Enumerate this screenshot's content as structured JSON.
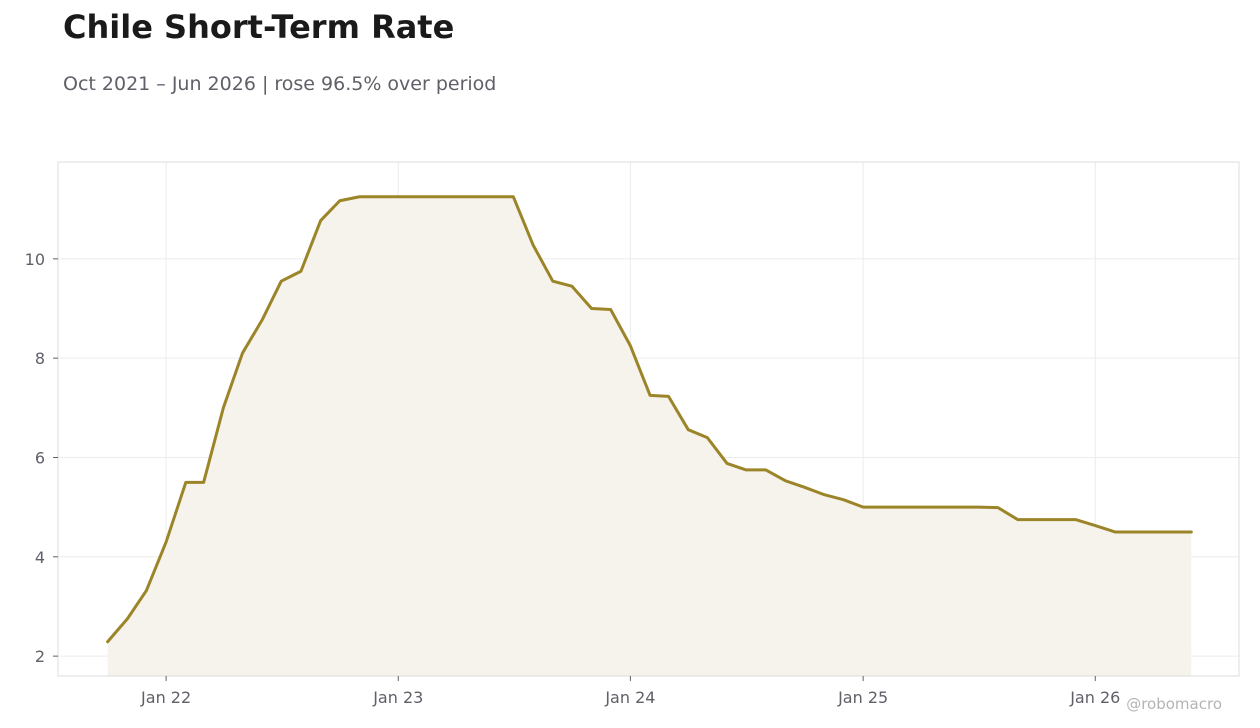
{
  "title": "Chile Short-Term Rate",
  "subtitle": "Oct 2021 – Jun 2026 | rose 96.5% over period",
  "watermark": "@robomacro",
  "colors": {
    "line": "#9c8428",
    "fill": "#f6f3ec",
    "grid": "#ececec",
    "frame": "#dcdcdc",
    "text": "#5f6068"
  },
  "chart_data": {
    "type": "area",
    "title": "Chile Short-Term Rate",
    "subtitle": "Oct 2021 – Jun 2026 | rose 96.5% over period",
    "xlabel": "",
    "ylabel": "",
    "grid": true,
    "legend": "none",
    "xlim": [
      "2021-07-15",
      "2026-08-15"
    ],
    "ylim": [
      1.6,
      11.95
    ],
    "x_ticks": [
      {
        "date": "2022-01-01",
        "label": "Jan 22"
      },
      {
        "date": "2023-01-01",
        "label": "Jan 23"
      },
      {
        "date": "2024-01-01",
        "label": "Jan 24"
      },
      {
        "date": "2025-01-01",
        "label": "Jan 25"
      },
      {
        "date": "2026-01-01",
        "label": "Jan 26"
      }
    ],
    "y_ticks": [
      2,
      4,
      6,
      8,
      10
    ],
    "series": [
      {
        "x": [
          "2021-10-01",
          "2021-11-01",
          "2021-12-01",
          "2022-01-01",
          "2022-02-01",
          "2022-03-01",
          "2022-04-01",
          "2022-05-01",
          "2022-06-01",
          "2022-07-01",
          "2022-08-01",
          "2022-09-01",
          "2022-10-01",
          "2022-11-01",
          "2022-12-01",
          "2023-01-01",
          "2023-02-01",
          "2023-03-01",
          "2023-04-01",
          "2023-05-01",
          "2023-06-01",
          "2023-07-01",
          "2023-08-01",
          "2023-09-01",
          "2023-10-01",
          "2023-11-01",
          "2023-12-01",
          "2024-01-01",
          "2024-02-01",
          "2024-03-01",
          "2024-04-01",
          "2024-05-01",
          "2024-06-01",
          "2024-07-01",
          "2024-08-01",
          "2024-09-01",
          "2024-10-01",
          "2024-11-01",
          "2024-12-01",
          "2025-01-01",
          "2025-02-01",
          "2025-03-01",
          "2025-04-01",
          "2025-05-01",
          "2025-06-01",
          "2025-07-01",
          "2025-08-01",
          "2025-09-01",
          "2025-10-01",
          "2025-11-01",
          "2025-12-01",
          "2026-01-01",
          "2026-02-01",
          "2026-03-01",
          "2026-04-01",
          "2026-05-01",
          "2026-06-01"
        ],
        "values": [
          2.29,
          2.75,
          3.32,
          4.3,
          5.5,
          5.5,
          7.0,
          8.1,
          8.77,
          9.55,
          9.75,
          10.77,
          11.17,
          11.25,
          11.25,
          11.25,
          11.25,
          11.25,
          11.25,
          11.25,
          11.25,
          11.25,
          10.28,
          9.55,
          9.45,
          9.0,
          8.98,
          8.25,
          7.25,
          7.23,
          6.56,
          6.4,
          5.88,
          5.75,
          5.75,
          5.53,
          5.4,
          5.25,
          5.15,
          5.0,
          5.0,
          5.0,
          5.0,
          5.0,
          5.0,
          5.0,
          4.99,
          4.75,
          4.75,
          4.75,
          4.75,
          4.63,
          4.5,
          4.5,
          4.5,
          4.5,
          4.5
        ]
      }
    ]
  }
}
